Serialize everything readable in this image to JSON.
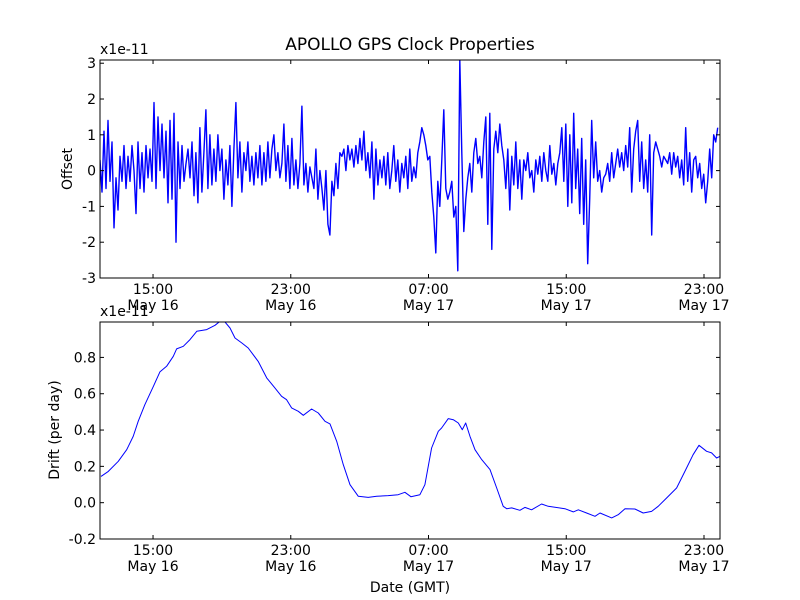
{
  "chart_data": [
    {
      "type": "line",
      "title": "APOLLO GPS Clock Properties",
      "ylabel": "Offset",
      "xlabel": "",
      "y_multiplier_label": "x1e-11",
      "x_unit": "hours since May 16 00:00 GMT",
      "xlim": [
        11.92,
        47.93
      ],
      "ylim": [
        -3,
        3.09
      ],
      "yticks": [
        -3,
        -2,
        -1,
        0,
        1,
        2,
        3
      ],
      "ytick_labels": [
        "-3",
        "-2",
        "-1",
        "0",
        "1",
        "2",
        "3"
      ],
      "xticks": [
        15,
        23,
        31,
        39,
        47
      ],
      "xtick_labels": [
        [
          "15:00",
          "May 16"
        ],
        [
          "23:00",
          "May 16"
        ],
        [
          "07:00",
          "May 17"
        ],
        [
          "15:00",
          "May 17"
        ],
        [
          "23:00",
          "May 17"
        ]
      ],
      "color": "#0000ff",
      "series": [
        {
          "name": "Offset",
          "x_start": 11.92,
          "x_step": 0.1161,
          "values": [
            0.3,
            -0.6,
            1.1,
            -0.5,
            1.4,
            -0.3,
            0.8,
            -1.6,
            -0.2,
            -1.1,
            0.4,
            -0.3,
            0.7,
            -0.5,
            0.4,
            -0.3,
            0.7,
            0.0,
            -1.2,
            0.8,
            -0.5,
            0.5,
            -0.6,
            0.7,
            -0.2,
            0.6,
            -0.3,
            1.9,
            -0.5,
            1.5,
            0.0,
            1.3,
            -0.2,
            1.1,
            -0.9,
            1.4,
            -0.8,
            1.6,
            -2.0,
            0.8,
            -0.5,
            0.7,
            -0.3,
            0.2,
            0.6,
            -0.2,
            0.8,
            -0.7,
            0.5,
            -0.9,
            1.2,
            -0.6,
            0.5,
            1.7,
            -0.5,
            1.0,
            -0.4,
            0.6,
            -0.3,
            1.0,
            0.0,
            0.6,
            -0.8,
            0.3,
            -0.4,
            0.7,
            -1.0,
            0.6,
            1.9,
            -0.2,
            0.8,
            -0.6,
            0.5,
            0.0,
            0.8,
            -0.3,
            0.4,
            -0.4,
            0.5,
            -0.2,
            0.7,
            -0.4,
            0.5,
            -0.3,
            0.8,
            -0.2,
            0.6,
            1.0,
            0.0,
            0.5,
            -0.2,
            0.2,
            1.3,
            -0.3,
            0.7,
            -0.5,
            0.9,
            -0.4,
            0.3,
            -0.5,
            0.2,
            1.8,
            -0.4,
            0.2,
            -0.6,
            0.1,
            -0.2,
            -0.5,
            0.6,
            -0.8,
            0.0,
            -0.5,
            -1.1,
            0.0,
            -1.5,
            -1.8,
            -0.3,
            -0.7,
            0.2,
            -0.5,
            0.5,
            0.4,
            0.6,
            0.0,
            0.7,
            0.3,
            0.6,
            0.1,
            0.7,
            0.2,
            0.9,
            0.3,
            1.1,
            0.0,
            0.5,
            -0.2,
            0.8,
            -0.8,
            0.6,
            -0.4,
            0.3,
            -0.2,
            0.4,
            -0.4,
            0.5,
            -0.5,
            0.0,
            0.7,
            -0.3,
            0.3,
            -0.6,
            0.2,
            -0.2,
            0.4,
            -0.5,
            0.6,
            -0.3,
            0.1,
            -0.2,
            0.5,
            0.8,
            1.2,
            1.0,
            0.7,
            0.3,
            0.4,
            -0.6,
            -1.3,
            -2.3,
            -0.3,
            -1.0,
            0.3,
            1.7,
            -0.5,
            -0.8,
            -0.6,
            -0.3,
            -1.3,
            -1.0,
            -2.8,
            3.1,
            0.5,
            -1.7,
            -0.8,
            -0.2,
            0.2,
            -0.6,
            0.5,
            0.9,
            0.2,
            0.4,
            -0.2,
            0.8,
            1.5,
            -1.5,
            1.6,
            -2.2,
            0.6,
            1.1,
            0.5,
            1.3,
            0.7,
            0.3,
            -0.5,
            0.6,
            -1.1,
            0.4,
            -0.4,
            0.8,
            -0.5,
            0.3,
            -0.8,
            0.3,
            0.0,
            0.5,
            -0.2,
            0.0,
            -0.6,
            0.3,
            -0.1,
            0.4,
            -0.3,
            0.5,
            0.0,
            -0.3,
            0.7,
            -0.1,
            0.2,
            -0.4,
            0.2,
            0.5,
            1.2,
            -0.3,
            1.3,
            -1.0,
            1.0,
            -0.9,
            1.6,
            -0.5,
            0.6,
            -1.2,
            0.9,
            -1.5,
            0.3,
            -2.6,
            -0.8,
            1.4,
            -0.2,
            0.8,
            -0.3,
            0.0,
            -0.6,
            -0.2,
            -0.1,
            0.2,
            -0.3,
            0.5,
            -0.2,
            0.2,
            0.6,
            0.1,
            0.5,
            0.0,
            0.7,
            0.1,
            1.2,
            -0.6,
            0.6,
            1.1,
            1.4,
            -0.3,
            0.8,
            -0.5,
            0.3,
            -0.6,
            1.0,
            -1.8,
            0.5,
            0.8,
            0.6,
            0.4,
            0.1,
            0.4,
            0.3,
            0.2,
            0.5,
            -0.1,
            0.5,
            0.1,
            0.4,
            -0.2,
            0.3,
            -0.4,
            1.2,
            -0.3,
            0.5,
            -0.6,
            0.3,
            0.4,
            -0.2,
            0.2,
            -0.5,
            -0.1,
            -0.9,
            -0.3,
            0.6,
            -0.2,
            1.0,
            0.8,
            1.2
          ]
        }
      ]
    },
    {
      "type": "line",
      "title": "",
      "ylabel": "Drift (per day)",
      "xlabel": "Date (GMT)",
      "y_multiplier_label": "x1e-11",
      "x_unit": "hours since May 16 00:00 GMT",
      "xlim": [
        11.92,
        47.93
      ],
      "ylim": [
        -0.2,
        0.995
      ],
      "yticks": [
        -0.2,
        0.0,
        0.2,
        0.4,
        0.6,
        0.8
      ],
      "ytick_labels": [
        "-0.2",
        "0.0",
        "0.2",
        "0.4",
        "0.6",
        "0.8"
      ],
      "xticks": [
        15,
        23,
        31,
        39,
        47
      ],
      "xtick_labels": [
        [
          "15:00",
          "May 16"
        ],
        [
          "23:00",
          "May 16"
        ],
        [
          "07:00",
          "May 17"
        ],
        [
          "15:00",
          "May 17"
        ],
        [
          "23:00",
          "May 17"
        ]
      ],
      "color": "#0000ff",
      "series": [
        {
          "name": "Drift",
          "x": [
            11.98,
            12.4,
            12.98,
            13.47,
            13.85,
            14.14,
            14.53,
            15.02,
            15.4,
            15.79,
            16.18,
            16.37,
            16.76,
            17.15,
            17.54,
            18.12,
            18.6,
            18.89,
            19.18,
            19.47,
            19.76,
            20.15,
            20.53,
            21.11,
            21.6,
            22.08,
            22.47,
            22.76,
            23.05,
            23.44,
            23.73,
            24.21,
            24.6,
            24.99,
            25.28,
            25.67,
            26.05,
            26.44,
            26.92,
            27.5,
            27.99,
            28.66,
            29.24,
            29.63,
            29.98,
            30.5,
            30.79,
            31.18,
            31.57,
            31.76,
            32.15,
            32.44,
            32.73,
            32.96,
            33.16,
            33.41,
            33.7,
            34.09,
            34.57,
            34.96,
            35.34,
            35.54,
            35.83,
            36.31,
            36.6,
            36.99,
            37.57,
            37.95,
            38.92,
            39.41,
            39.7,
            40.18,
            40.67,
            40.96,
            41.64,
            42.02,
            42.41,
            42.99,
            43.47,
            43.96,
            44.34,
            44.83,
            45.41,
            45.89,
            46.37,
            46.71,
            47.15,
            47.44,
            47.73,
            47.92
          ],
          "y": [
            0.145,
            0.172,
            0.228,
            0.292,
            0.365,
            0.448,
            0.54,
            0.641,
            0.72,
            0.751,
            0.806,
            0.847,
            0.861,
            0.898,
            0.944,
            0.953,
            0.977,
            0.999,
            0.995,
            0.962,
            0.907,
            0.88,
            0.852,
            0.778,
            0.687,
            0.632,
            0.586,
            0.567,
            0.522,
            0.503,
            0.481,
            0.516,
            0.494,
            0.448,
            0.434,
            0.338,
            0.209,
            0.099,
            0.035,
            0.029,
            0.035,
            0.039,
            0.044,
            0.057,
            0.033,
            0.044,
            0.099,
            0.301,
            0.393,
            0.411,
            0.463,
            0.457,
            0.439,
            0.402,
            0.439,
            0.365,
            0.292,
            0.237,
            0.182,
            0.081,
            -0.02,
            -0.033,
            -0.029,
            -0.042,
            -0.026,
            -0.039,
            -0.007,
            -0.02,
            -0.033,
            -0.051,
            -0.039,
            -0.057,
            -0.075,
            -0.057,
            -0.084,
            -0.066,
            -0.033,
            -0.035,
            -0.057,
            -0.048,
            -0.02,
            0.026,
            0.081,
            0.172,
            0.264,
            0.316,
            0.283,
            0.274,
            0.246,
            0.255
          ]
        }
      ]
    }
  ]
}
